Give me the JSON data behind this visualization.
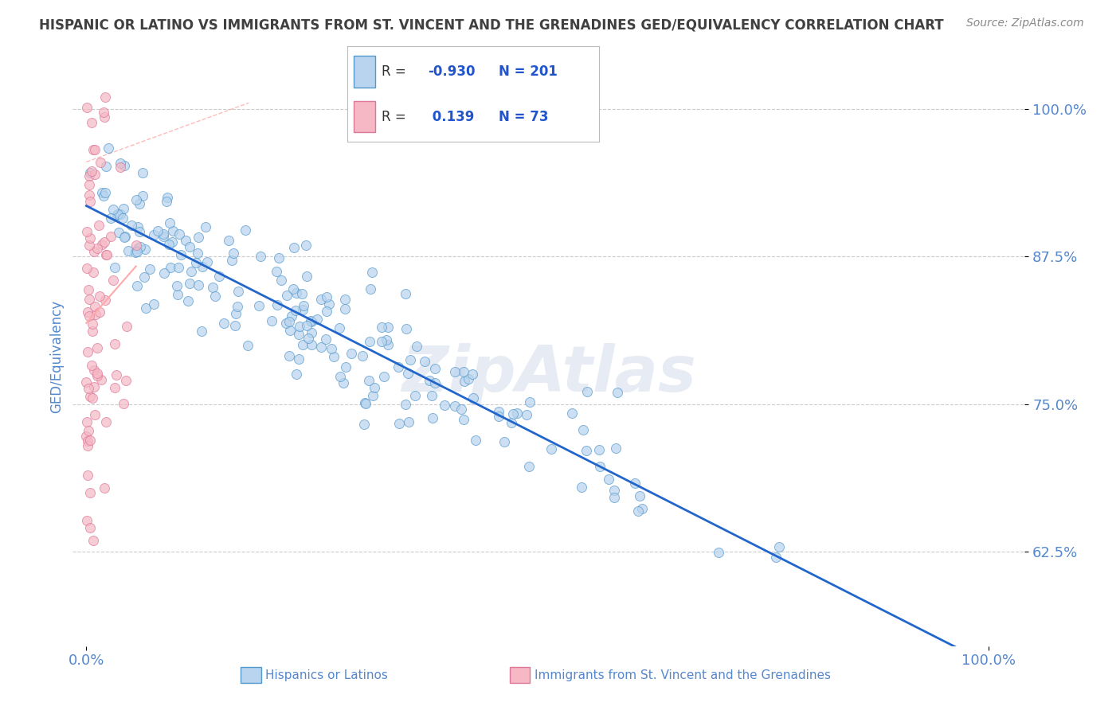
{
  "title": "HISPANIC OR LATINO VS IMMIGRANTS FROM ST. VINCENT AND THE GRENADINES GED/EQUIVALENCY CORRELATION CHART",
  "source": "Source: ZipAtlas.com",
  "ylabel": "GED/Equivalency",
  "R_blue": -0.93,
  "N_blue": 201,
  "R_pink": 0.139,
  "N_pink": 73,
  "blue_dot_color": "#b8d4ee",
  "blue_dot_edge": "#5599cc",
  "pink_dot_color": "#f5b8c4",
  "pink_dot_edge": "#dd7799",
  "trend_blue_color": "#2266cc",
  "trend_pink_color": "#ffaaaa",
  "watermark": "ZipAtlas",
  "background_color": "#ffffff",
  "grid_color": "#cccccc",
  "title_color": "#404040",
  "axis_label_color": "#5588cc",
  "tick_label_color": "#5588cc",
  "legend_R_color": "#2255cc",
  "legend_label_color": "#5588cc",
  "source_color": "#888888",
  "blue_scatter_seed": 12,
  "pink_scatter_seed": 99,
  "ylim_low": 0.545,
  "ylim_high": 1.035,
  "xlim_low": -0.015,
  "xlim_high": 1.04,
  "yticks": [
    0.625,
    0.75,
    0.875,
    1.0
  ],
  "ytick_labels": [
    "62.5%",
    "75.0%",
    "87.5%",
    "100.0%"
  ],
  "xtick_low": 0.0,
  "xtick_high": 1.0,
  "xtick_low_label": "0.0%",
  "xtick_high_label": "100.0%",
  "legend_blue_label": "Hispanics or Latinos",
  "legend_pink_label": "Immigrants from St. Vincent and the Grenadines"
}
